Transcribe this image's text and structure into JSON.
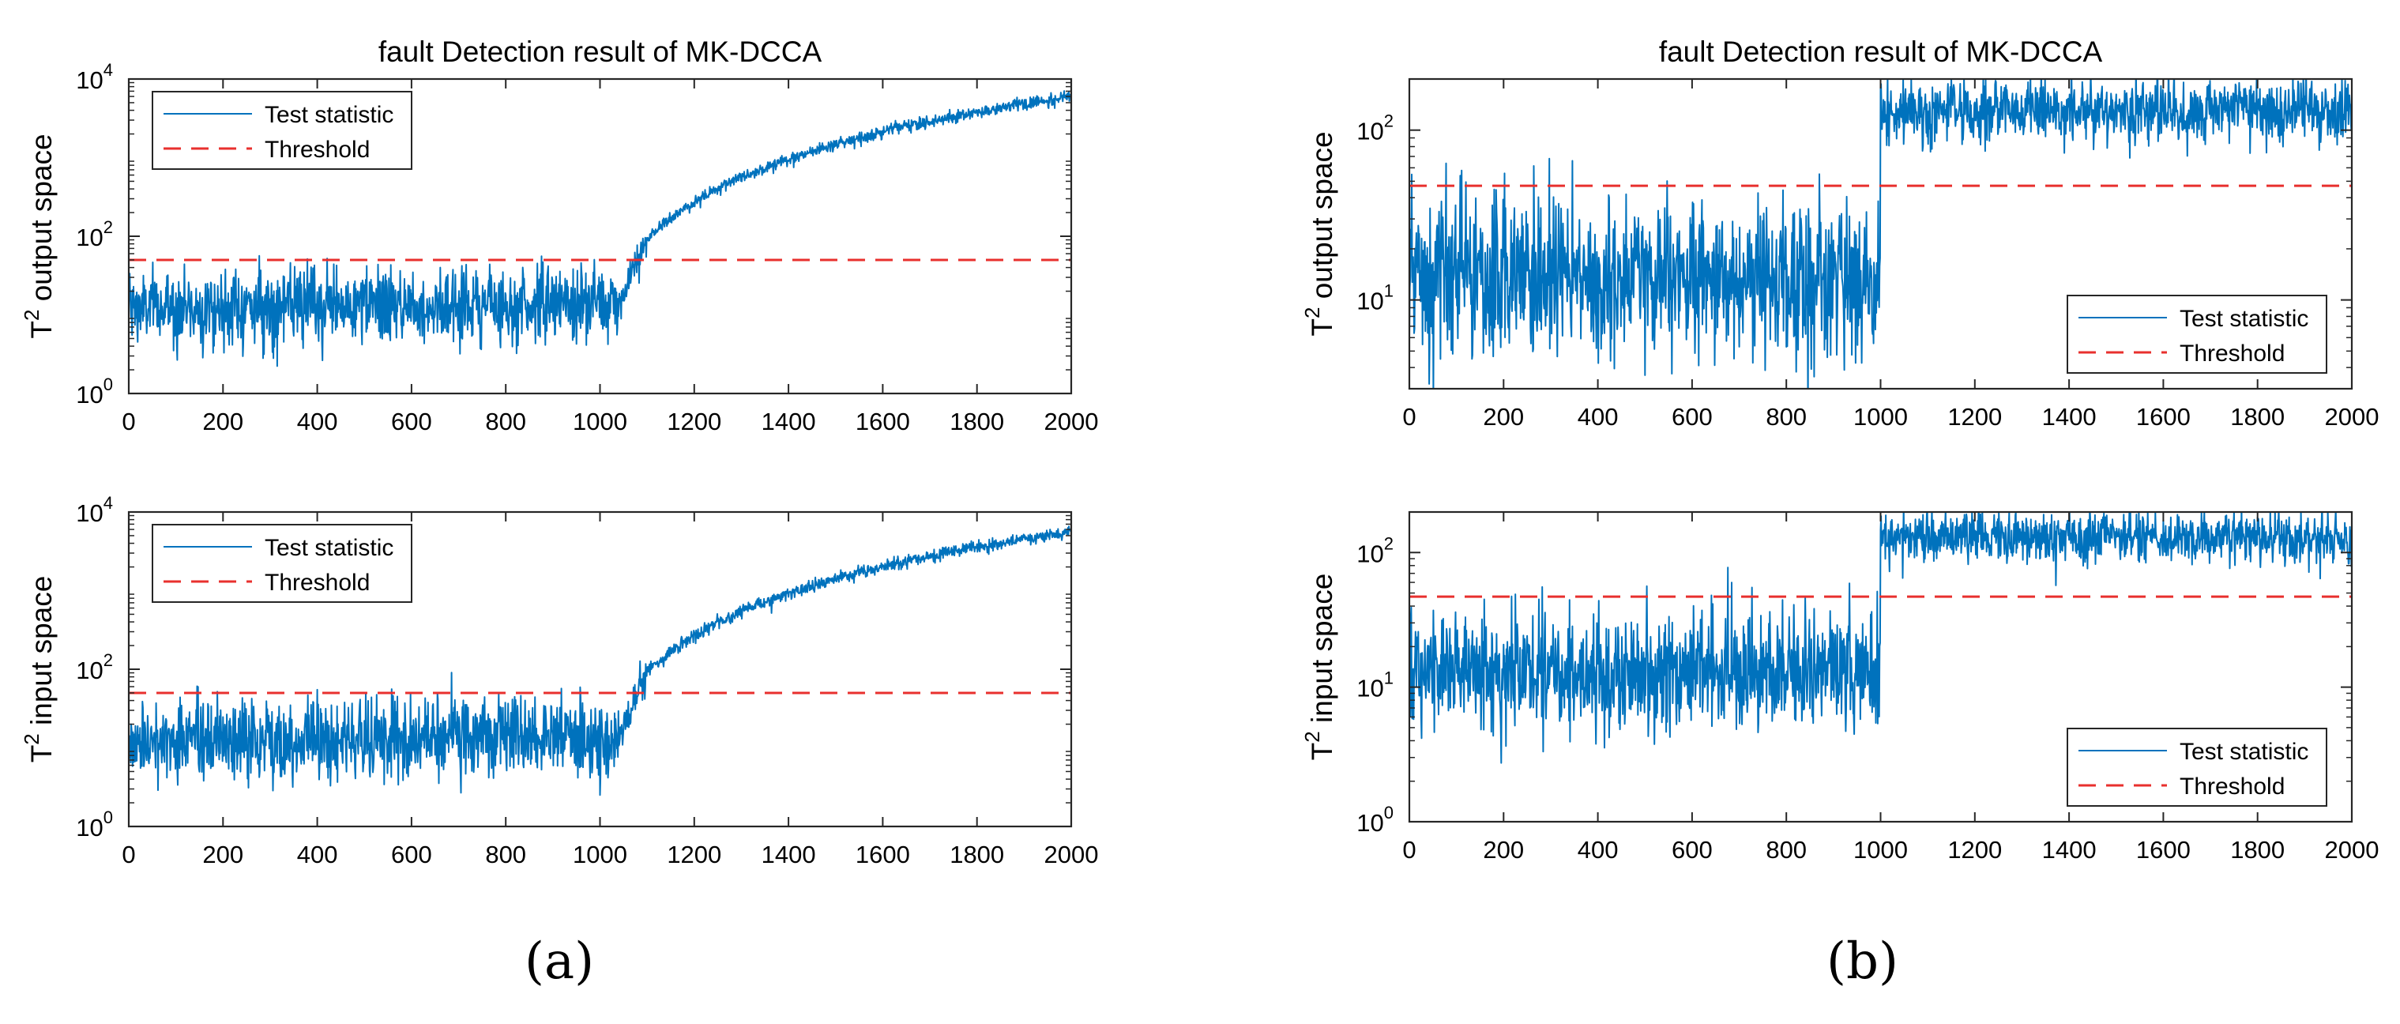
{
  "figure": {
    "panel_labels": [
      "(a)",
      "(b)"
    ]
  },
  "colors": {
    "series": "#0072BD",
    "threshold": "#E8302E",
    "axes": "#262626"
  },
  "chart_data": [
    {
      "id": "a-top",
      "type": "line",
      "title": "fault Detection result of MK-DCCA",
      "ylabel_base": "T",
      "ylabel_sup": "2",
      "ylabel_rest": " output space",
      "xlabel": "",
      "xscale": "linear",
      "yscale": "log",
      "xlim": [
        0,
        2000
      ],
      "ylim": [
        1,
        10000
      ],
      "xticks": [
        0,
        200,
        400,
        600,
        800,
        1000,
        1200,
        1400,
        1600,
        1800,
        2000
      ],
      "yticks": [
        {
          "base": "10",
          "exp": "0",
          "value": 1
        },
        {
          "base": "10",
          "exp": "2",
          "value": 100
        },
        {
          "base": "10",
          "exp": "4",
          "value": 10000
        }
      ],
      "legend": {
        "location": "top-left",
        "entries": [
          "Test statistic",
          "Threshold"
        ]
      },
      "threshold": 50,
      "series": [
        {
          "name": "Test statistic",
          "style": "solid",
          "n_samples": 2000,
          "segments": [
            {
              "from": 0,
              "to": 1040,
              "behavior": "noisy",
              "median": 12,
              "start": 12,
              "end": 14,
              "spread": 0.55
            },
            {
              "from": 1040,
              "to": 1100,
              "behavior": "rising",
              "start": 14,
              "end": 90,
              "spread": 0.25
            },
            {
              "from": 1100,
              "to": 2000,
              "behavior": "log-growth",
              "start": 90,
              "end": 6000,
              "spread": 0.09
            }
          ]
        }
      ]
    },
    {
      "id": "a-bottom",
      "type": "line",
      "title": "",
      "ylabel_base": "T",
      "ylabel_sup": "2",
      "ylabel_rest": " input space",
      "xlabel": "",
      "xscale": "linear",
      "yscale": "log",
      "xlim": [
        0,
        2000
      ],
      "ylim": [
        1,
        10000
      ],
      "xticks": [
        0,
        200,
        400,
        600,
        800,
        1000,
        1200,
        1400,
        1600,
        1800,
        2000
      ],
      "yticks": [
        {
          "base": "10",
          "exp": "0",
          "value": 1
        },
        {
          "base": "10",
          "exp": "2",
          "value": 100
        },
        {
          "base": "10",
          "exp": "4",
          "value": 10000
        }
      ],
      "legend": {
        "location": "top-left",
        "entries": [
          "Test statistic",
          "Threshold"
        ]
      },
      "threshold": 50,
      "series": [
        {
          "name": "Test statistic",
          "style": "solid",
          "n_samples": 2000,
          "segments": [
            {
              "from": 0,
              "to": 1040,
              "behavior": "noisy",
              "median": 12,
              "start": 12,
              "end": 14,
              "spread": 0.6
            },
            {
              "from": 1040,
              "to": 1100,
              "behavior": "rising",
              "start": 14,
              "end": 90,
              "spread": 0.25
            },
            {
              "from": 1100,
              "to": 2000,
              "behavior": "log-growth",
              "start": 90,
              "end": 5500,
              "spread": 0.09
            }
          ]
        }
      ]
    },
    {
      "id": "b-top",
      "type": "line",
      "title": "fault Detection result of MK-DCCA",
      "ylabel_base": "T",
      "ylabel_sup": "2",
      "ylabel_rest": " output space",
      "xlabel": "",
      "xscale": "linear",
      "yscale": "log",
      "xlim": [
        0,
        2000
      ],
      "ylim": [
        3,
        200
      ],
      "xticks": [
        0,
        200,
        400,
        600,
        800,
        1000,
        1200,
        1400,
        1600,
        1800,
        2000
      ],
      "yticks": [
        {
          "base": "10",
          "exp": "1",
          "value": 10
        },
        {
          "base": "10",
          "exp": "2",
          "value": 100
        }
      ],
      "legend": {
        "location": "bottom-right",
        "entries": [
          "Test statistic",
          "Threshold"
        ]
      },
      "threshold": 47,
      "series": [
        {
          "name": "Test statistic",
          "style": "solid",
          "n_samples": 2000,
          "segments": [
            {
              "from": 0,
              "to": 1000,
              "behavior": "noisy",
              "median": 13,
              "start": 13,
              "end": 13,
              "spread": 0.55
            },
            {
              "from": 1000,
              "to": 2000,
              "behavior": "noisy",
              "median": 130,
              "start": 130,
              "end": 130,
              "spread": 0.22
            }
          ]
        }
      ]
    },
    {
      "id": "b-bottom",
      "type": "line",
      "title": "",
      "ylabel_base": "T",
      "ylabel_sup": "2",
      "ylabel_rest": " input space",
      "xlabel": "",
      "xscale": "linear",
      "yscale": "log",
      "xlim": [
        0,
        2000
      ],
      "ylim": [
        1,
        200
      ],
      "xticks": [
        0,
        200,
        400,
        600,
        800,
        1000,
        1200,
        1400,
        1600,
        1800,
        2000
      ],
      "yticks": [
        {
          "base": "10",
          "exp": "0",
          "value": 1
        },
        {
          "base": "10",
          "exp": "1",
          "value": 10
        },
        {
          "base": "10",
          "exp": "2",
          "value": 100
        }
      ],
      "legend": {
        "location": "bottom-right",
        "entries": [
          "Test statistic",
          "Threshold"
        ]
      },
      "threshold": 47,
      "series": [
        {
          "name": "Test statistic",
          "style": "solid",
          "n_samples": 2000,
          "segments": [
            {
              "from": 0,
              "to": 1000,
              "behavior": "noisy",
              "median": 13,
              "start": 13,
              "end": 13,
              "spread": 0.5
            },
            {
              "from": 1000,
              "to": 2000,
              "behavior": "noisy",
              "median": 130,
              "start": 130,
              "end": 130,
              "spread": 0.22
            }
          ]
        }
      ]
    }
  ]
}
